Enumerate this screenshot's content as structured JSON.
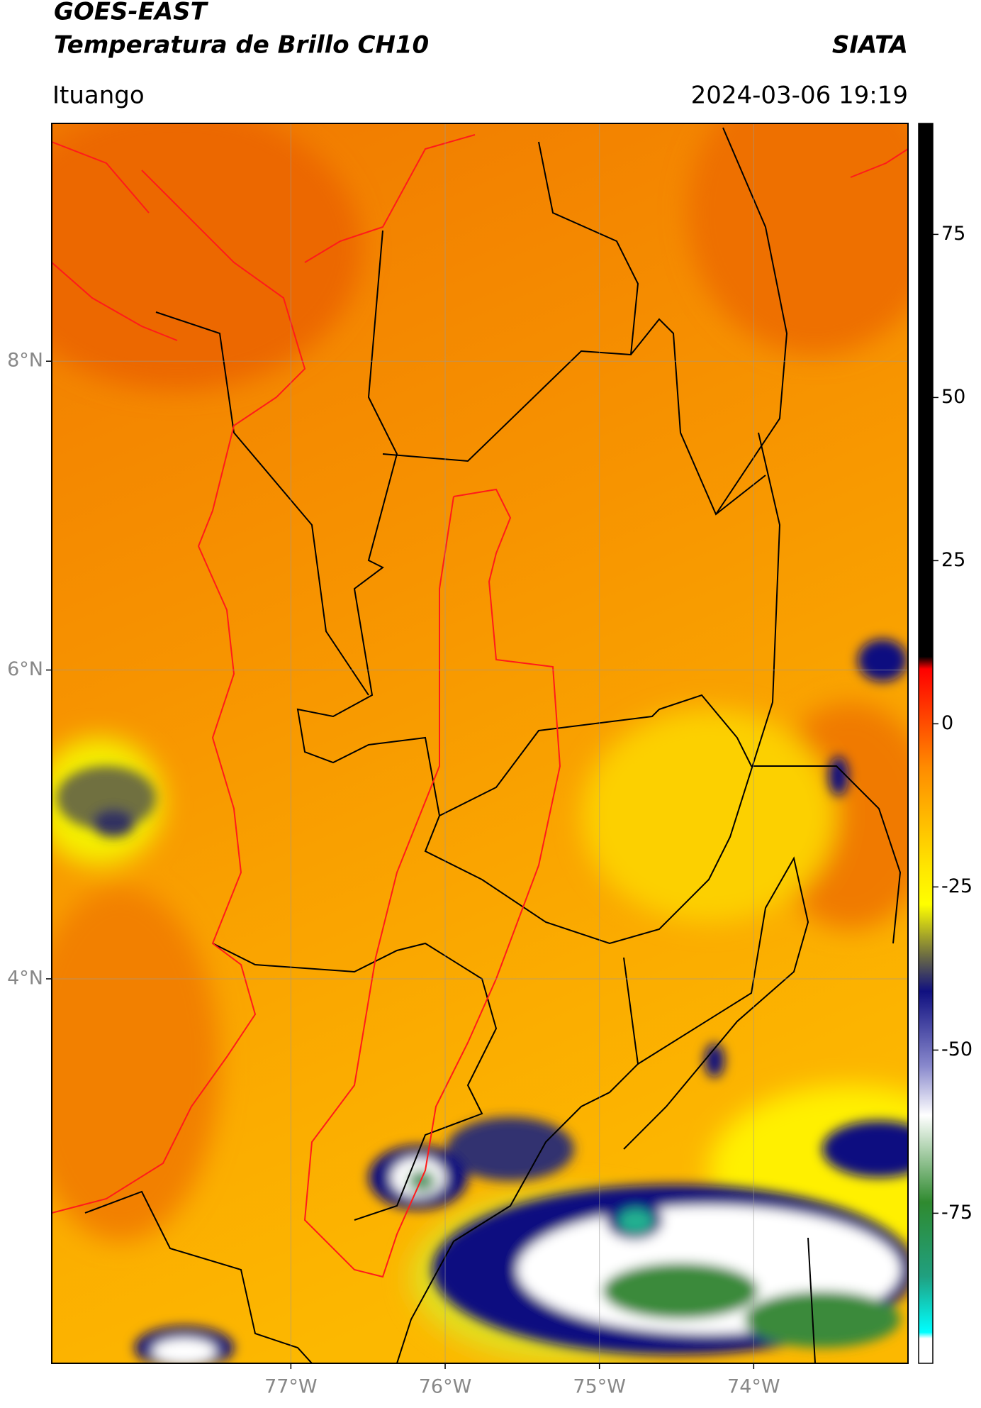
{
  "header": {
    "title": "GOES-EAST",
    "subtitle": "Temperatura de Brillo CH10",
    "brand": "SIATA",
    "location": "Ituango",
    "datetime": "2024-03-06 19:19"
  },
  "map": {
    "xlim": [
      -78.55,
      -73.0
    ],
    "ylim": [
      1.51,
      9.54
    ],
    "xticks": [
      {
        "value": -77,
        "label": "77°W"
      },
      {
        "value": -76,
        "label": "76°W"
      },
      {
        "value": -75,
        "label": "75°W"
      },
      {
        "value": -74,
        "label": "74°W"
      }
    ],
    "yticks": [
      {
        "value": 8,
        "label": "8°N"
      },
      {
        "value": 6,
        "label": "6°N"
      },
      {
        "value": 4,
        "label": "4°N"
      }
    ],
    "grid": true
  },
  "colorbar": {
    "lim": [
      -98,
      92
    ],
    "ticks": [
      75,
      50,
      25,
      0,
      -25,
      -50,
      -75
    ]
  }
}
